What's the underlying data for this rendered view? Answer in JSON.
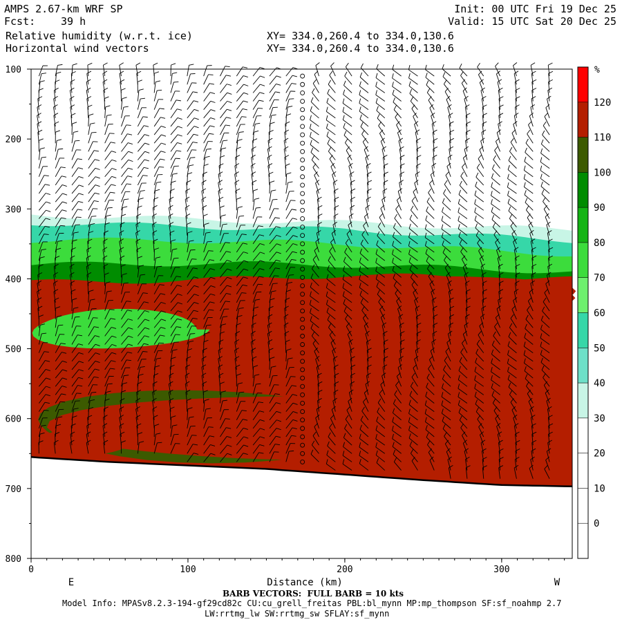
{
  "header": {
    "model": "AMPS 2.67-km WRF SP",
    "forecast_label": "Fcst:",
    "forecast_hours": "39 h",
    "init": "Init: 00 UTC Fri 19 Dec 25",
    "valid": "Valid: 15 UTC Sat 20 Dec 25",
    "field1": "Relative humidity (w.r.t. ice)",
    "field2": "Horizontal wind vectors",
    "xy1": "XY= 334.0,260.4 to 334.0,130.6",
    "xy2": "XY= 334.0,260.4 to 334.0,130.6"
  },
  "footer": {
    "barb_note": "BARB VECTORS:  FULL BARB = 10 kts",
    "model_info": "Model Info: MPASv8.2.3-194-gf29cd82c CU:cu_grell_freitas PBL:bl_mynn MP:mp_thompson SF:sf_noahmp 2.7",
    "model_info2": "LW:rrtmg_lw SW:rrtmg_sw SFLAY:sf_mynn"
  },
  "chart_data": {
    "type": "heatmap",
    "xlabel": "Distance (km)",
    "ylabel": "",
    "xlim": [
      0,
      345
    ],
    "ylim": [
      800,
      100
    ],
    "x_ticks": [
      0,
      100,
      200,
      300
    ],
    "y_ticks": [
      100,
      200,
      300,
      400,
      500,
      600,
      700,
      800
    ],
    "left_end_label": "E",
    "right_end_label": "W",
    "colorbar": {
      "unit": "%",
      "levels": [
        0,
        10,
        20,
        30,
        40,
        50,
        60,
        70,
        80,
        90,
        100,
        110,
        120
      ],
      "colors": [
        "#ffffff",
        "#ffffff",
        "#ffffff",
        "#ffffff",
        "#c8f5e6",
        "#6ee0c8",
        "#36d7a8",
        "#6ef06e",
        "#3cdc3c",
        "#14b414",
        "#008c00",
        "#3c5a00",
        "#b41e00",
        "#ff0000"
      ]
    },
    "terrain_pressure": [
      [
        0,
        655
      ],
      [
        50,
        662
      ],
      [
        100,
        667
      ],
      [
        150,
        672
      ],
      [
        200,
        680
      ],
      [
        250,
        688
      ],
      [
        300,
        695
      ],
      [
        345,
        697
      ]
    ],
    "rh_bands": [
      {
        "rh_min": 30,
        "top_pressure": [
          [
            0,
            308
          ],
          [
            100,
            315
          ],
          [
            200,
            320
          ],
          [
            345,
            330
          ]
        ]
      },
      {
        "rh_min": 50,
        "top_pressure": [
          [
            0,
            320
          ],
          [
            100,
            325
          ],
          [
            200,
            330
          ],
          [
            345,
            345
          ]
        ]
      },
      {
        "rh_min": 70,
        "top_pressure": [
          [
            0,
            345
          ],
          [
            100,
            345
          ],
          [
            200,
            350
          ],
          [
            345,
            365
          ]
        ]
      },
      {
        "rh_min": 90,
        "top_pressure": [
          [
            0,
            380
          ],
          [
            100,
            378
          ],
          [
            200,
            380
          ],
          [
            345,
            390
          ]
        ]
      },
      {
        "rh_min": 110,
        "top_pressure": [
          [
            0,
            405
          ],
          [
            100,
            402
          ],
          [
            200,
            395
          ],
          [
            345,
            400
          ]
        ]
      }
    ],
    "rh_features": [
      {
        "rh_min": 110,
        "x_range": [
          130,
          345
        ],
        "p_range": [
          395,
          450
        ]
      },
      {
        "rh_min": 70,
        "x_range": [
          0,
          110
        ],
        "p_range": [
          445,
          500
        ]
      },
      {
        "rh_min": 100,
        "x_range": [
          0,
          230
        ],
        "p_range": [
          560,
          660
        ]
      },
      {
        "rh_min": 110,
        "x_range": [
          20,
          280
        ],
        "p_range": [
          565,
          660
        ]
      },
      {
        "rh_min": 110,
        "x_range": [
          0,
          60
        ],
        "p_range": [
          615,
          655
        ]
      }
    ],
    "wind_barbs": "vertical profile columns every ~10 km, pressure 110–690 hPa; calm circles at ~175 km"
  }
}
